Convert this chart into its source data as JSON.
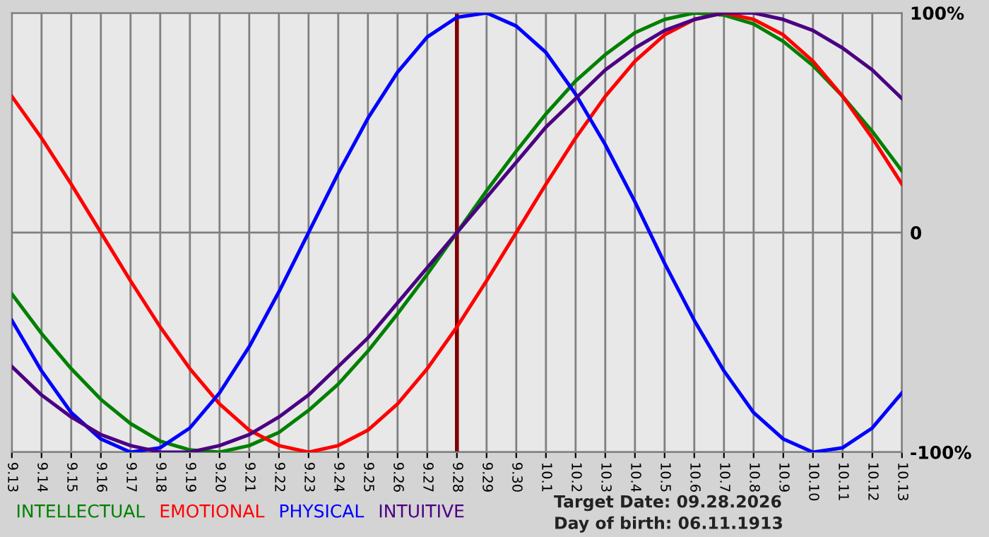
{
  "chart_data": {
    "type": "line",
    "categories": [
      "9.13",
      "9.14",
      "9.15",
      "9.16",
      "9.17",
      "9.18",
      "9.19",
      "9.20",
      "9.21",
      "9.22",
      "9.23",
      "9.24",
      "9.25",
      "9.26",
      "9.27",
      "9.28",
      "9.29",
      "9.30",
      "10.1",
      "10.2",
      "10.3",
      "10.4",
      "10.5",
      "10.6",
      "10.7",
      "10.8",
      "10.9",
      "10.10",
      "10.11",
      "10.12",
      "10.13"
    ],
    "series": [
      {
        "name": "INTELLECTUAL",
        "color": "#008000",
        "values": [
          -28,
          -46,
          -62,
          -76,
          -87,
          -95,
          -99,
          -100,
          -97,
          -91,
          -81,
          -69,
          -54,
          -37,
          -19,
          0,
          19,
          37,
          54,
          69,
          81,
          91,
          97,
          100,
          99,
          95,
          87,
          76,
          62,
          46,
          28
        ]
      },
      {
        "name": "EMOTIONAL",
        "color": "#ff0000",
        "values": [
          62,
          43,
          22,
          0,
          -22,
          -43,
          -62,
          -78,
          -90,
          -97,
          -100,
          -97,
          -90,
          -78,
          -62,
          -43,
          -22,
          0,
          22,
          43,
          62,
          78,
          90,
          97,
          100,
          97,
          90,
          78,
          62,
          43,
          22
        ]
      },
      {
        "name": "PHYSICAL",
        "color": "#0000ff",
        "values": [
          -40,
          -63,
          -82,
          -94,
          -100,
          -98,
          -89,
          -73,
          -52,
          -27,
          0,
          27,
          52,
          73,
          89,
          98,
          100,
          94,
          82,
          63,
          40,
          14,
          -14,
          -40,
          -63,
          -82,
          -94,
          -100,
          -98,
          -89,
          -73
        ]
      },
      {
        "name": "INTUITIVE",
        "color": "#4b0082",
        "values": [
          -61,
          -74,
          -84,
          -92,
          -97,
          -100,
          -100,
          -97,
          -92,
          -84,
          -74,
          -61,
          -48,
          -32,
          -16,
          0,
          16,
          32,
          48,
          61,
          74,
          84,
          92,
          97,
          100,
          100,
          97,
          92,
          84,
          74,
          61
        ]
      }
    ],
    "ylim": [
      -100,
      100
    ],
    "yticks": [
      {
        "value": 100,
        "label": "100%"
      },
      0,
      {
        "value": -100,
        "label": "-100%"
      }
    ],
    "grid": true,
    "legend": "bottom",
    "marker": "none",
    "line_style": "solid",
    "ref_lines": [
      {
        "axis": "x",
        "value": "9.28",
        "color": "#800000"
      }
    ],
    "annotations": [
      "Target Date: 09.28.2026",
      "Day of birth: 06.11.1913"
    ]
  }
}
